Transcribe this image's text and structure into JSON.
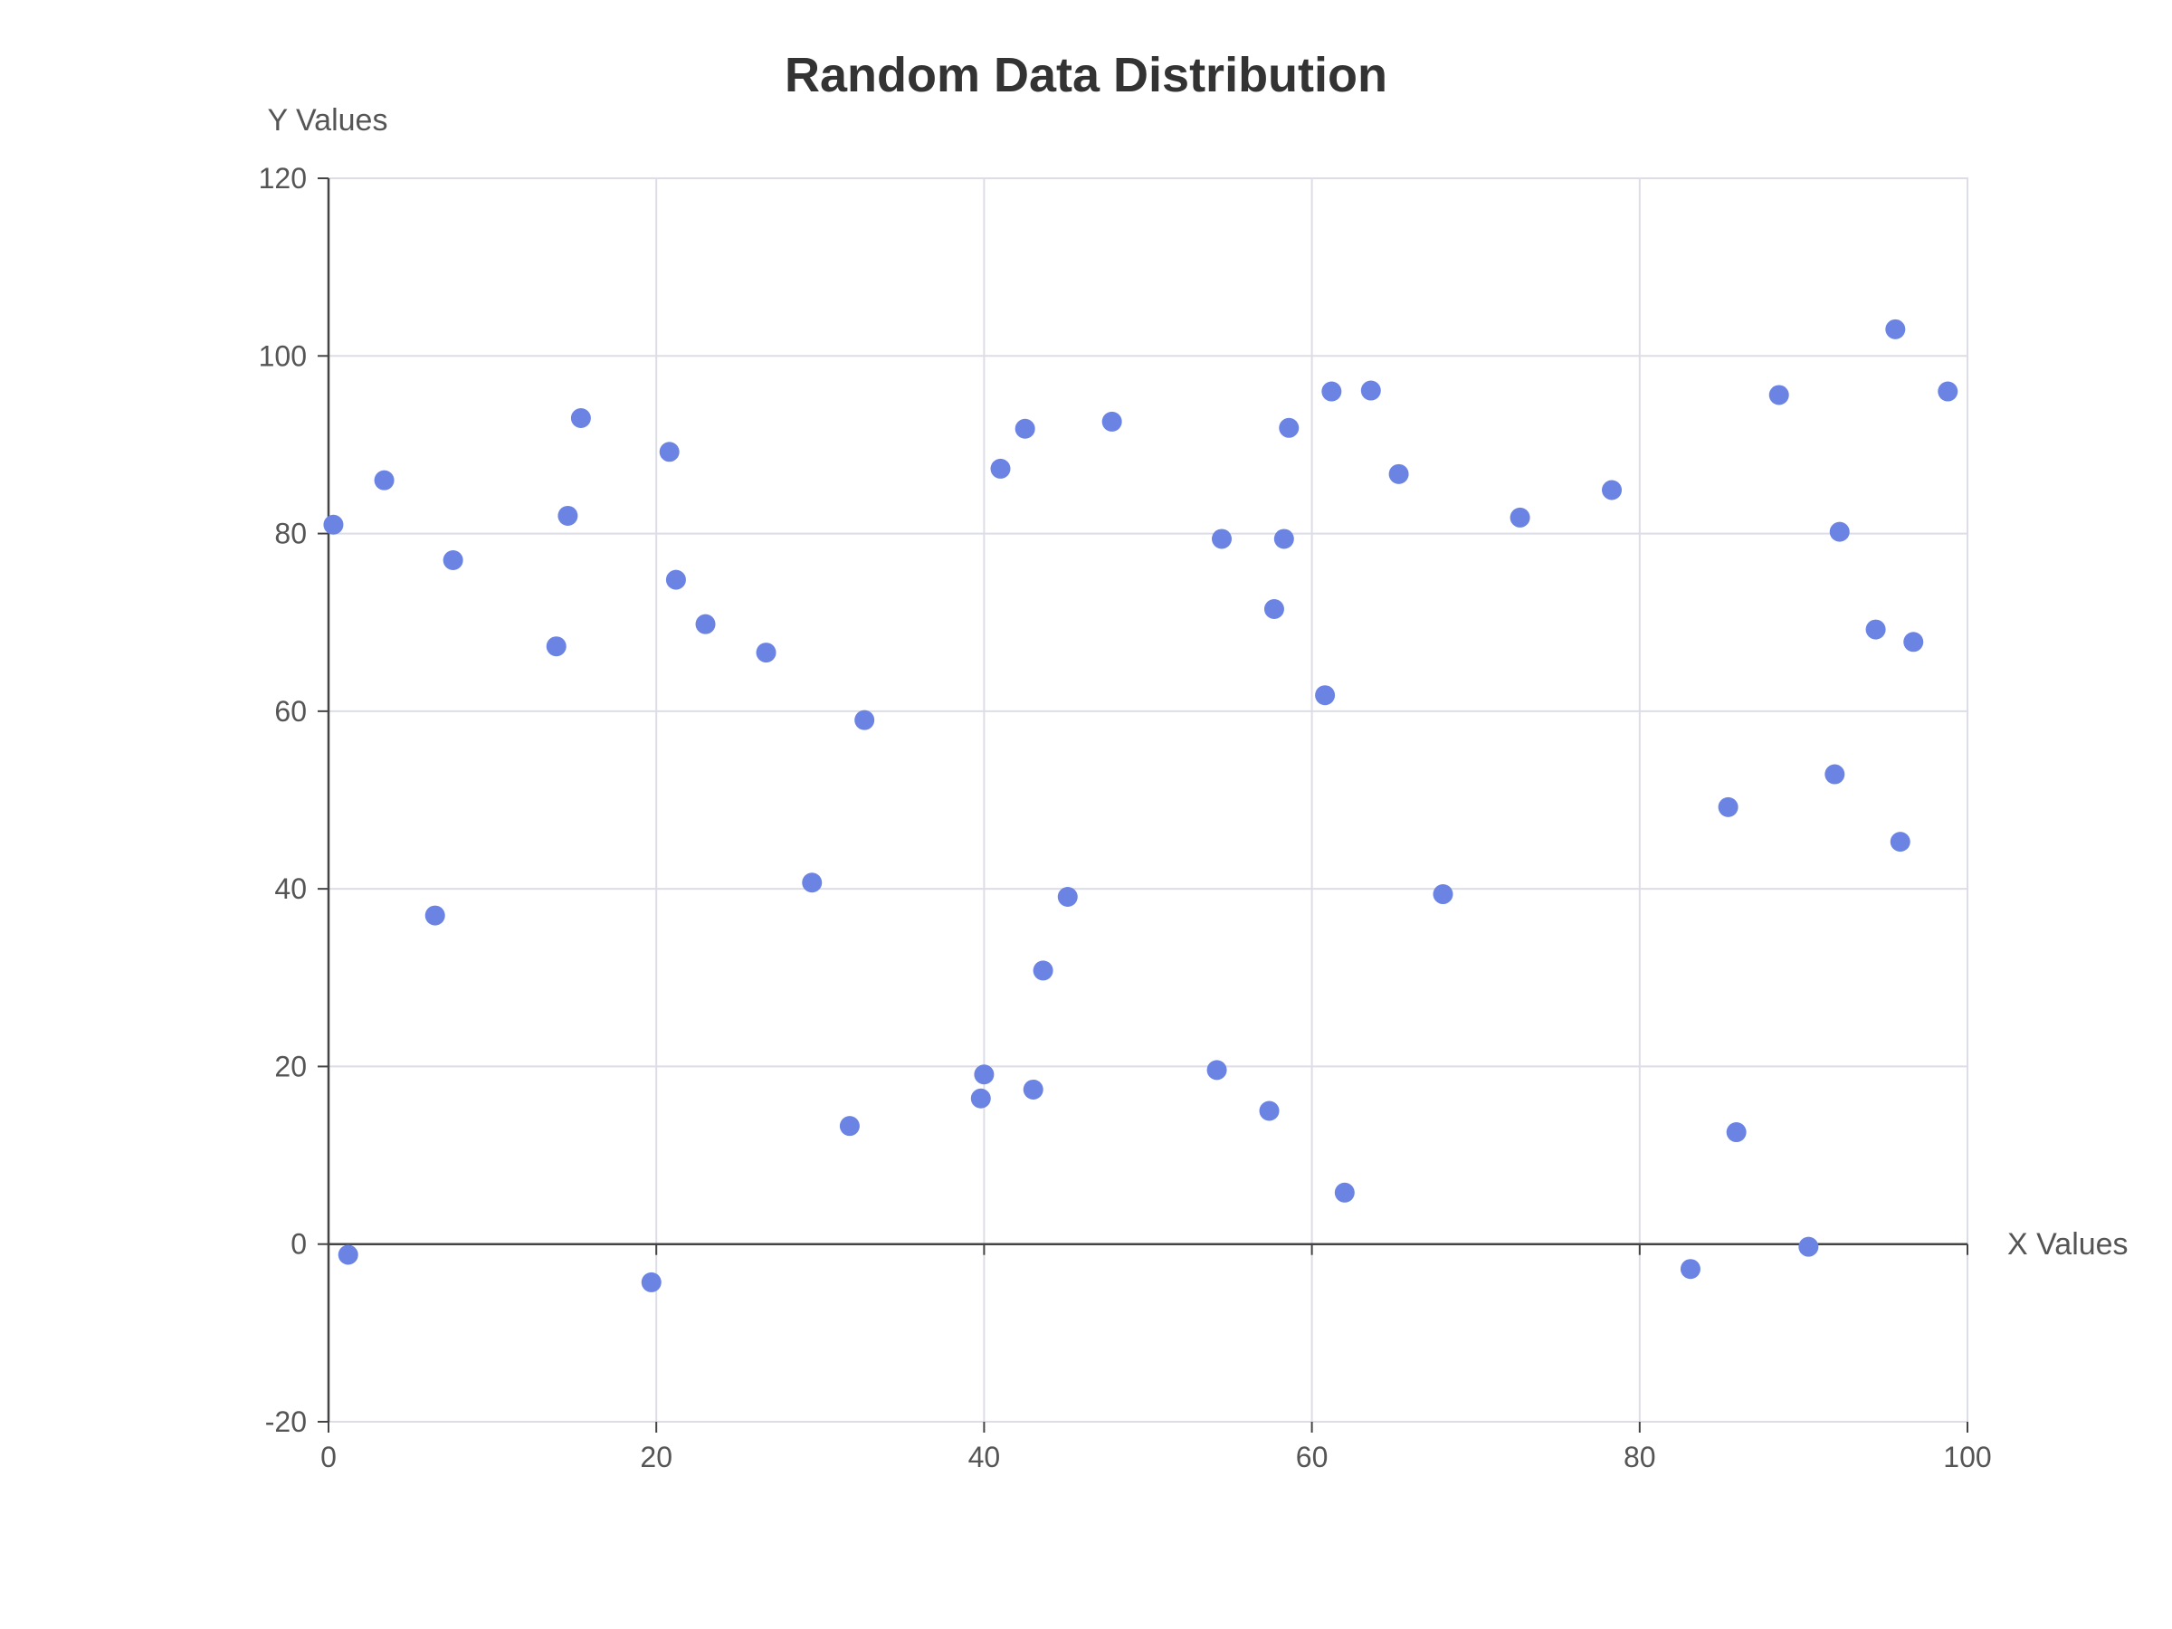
{
  "chart_data": {
    "type": "scatter",
    "title": "Random Data Distribution",
    "xlabel": "X Values",
    "ylabel": "Y Values",
    "xlim": [
      0,
      100
    ],
    "ylim": [
      -20,
      120
    ],
    "x_ticks": [
      0,
      20,
      40,
      60,
      80,
      100
    ],
    "y_ticks": [
      -20,
      0,
      20,
      40,
      60,
      80,
      100,
      120
    ],
    "grid": true,
    "color": "#6b84e3",
    "points": [
      {
        "x": 0.3,
        "y": 81
      },
      {
        "x": 1.2,
        "y": -1.2
      },
      {
        "x": 3.4,
        "y": 86
      },
      {
        "x": 6.5,
        "y": 37
      },
      {
        "x": 7.6,
        "y": 77
      },
      {
        "x": 13.9,
        "y": 67.3
      },
      {
        "x": 14.6,
        "y": 82
      },
      {
        "x": 15.4,
        "y": 93
      },
      {
        "x": 19.7,
        "y": -4.3
      },
      {
        "x": 20.8,
        "y": 89.2
      },
      {
        "x": 21.2,
        "y": 74.8
      },
      {
        "x": 23.0,
        "y": 69.8
      },
      {
        "x": 26.7,
        "y": 66.6
      },
      {
        "x": 29.5,
        "y": 40.7
      },
      {
        "x": 31.8,
        "y": 13.3
      },
      {
        "x": 32.7,
        "y": 59
      },
      {
        "x": 39.8,
        "y": 16.4
      },
      {
        "x": 40.0,
        "y": 19.1
      },
      {
        "x": 41.0,
        "y": 87.3
      },
      {
        "x": 42.5,
        "y": 91.8
      },
      {
        "x": 43.0,
        "y": 17.4
      },
      {
        "x": 43.6,
        "y": 30.8
      },
      {
        "x": 45.1,
        "y": 39.1
      },
      {
        "x": 47.8,
        "y": 92.6
      },
      {
        "x": 54.2,
        "y": 19.6
      },
      {
        "x": 54.5,
        "y": 79.4
      },
      {
        "x": 57.4,
        "y": 15
      },
      {
        "x": 57.7,
        "y": 71.5
      },
      {
        "x": 58.3,
        "y": 79.4
      },
      {
        "x": 58.6,
        "y": 91.9
      },
      {
        "x": 60.8,
        "y": 61.8
      },
      {
        "x": 61.2,
        "y": 96
      },
      {
        "x": 62.0,
        "y": 5.8
      },
      {
        "x": 63.6,
        "y": 96.1
      },
      {
        "x": 65.3,
        "y": 86.7
      },
      {
        "x": 68.0,
        "y": 39.4
      },
      {
        "x": 72.7,
        "y": 81.8
      },
      {
        "x": 78.3,
        "y": 84.9
      },
      {
        "x": 83.1,
        "y": -2.8
      },
      {
        "x": 85.4,
        "y": 49.2
      },
      {
        "x": 85.9,
        "y": 12.6
      },
      {
        "x": 88.5,
        "y": 95.6
      },
      {
        "x": 90.3,
        "y": -0.3
      },
      {
        "x": 91.9,
        "y": 52.9
      },
      {
        "x": 92.2,
        "y": 80.2
      },
      {
        "x": 94.4,
        "y": 69.2
      },
      {
        "x": 95.6,
        "y": 103
      },
      {
        "x": 95.9,
        "y": 45.3
      },
      {
        "x": 96.7,
        "y": 67.8
      },
      {
        "x": 98.8,
        "y": 96
      }
    ]
  }
}
